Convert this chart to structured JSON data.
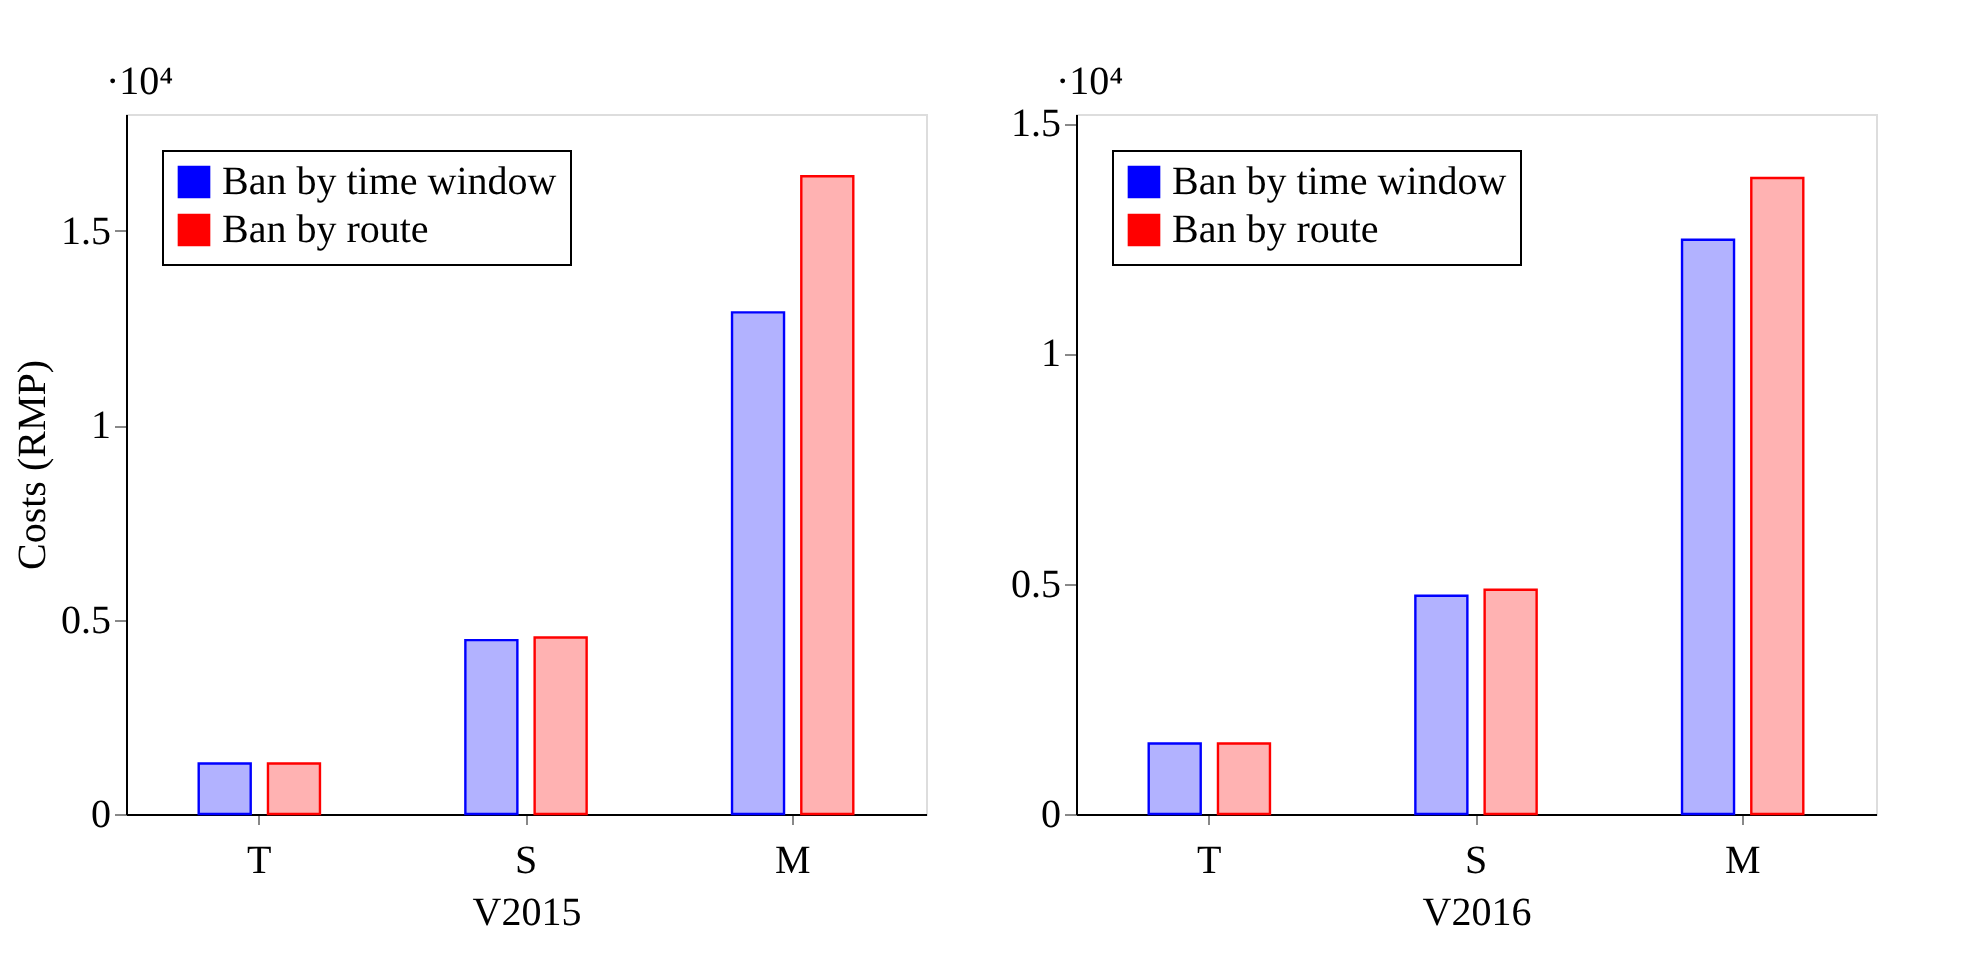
{
  "chart_data": [
    {
      "type": "bar",
      "xlabel": "V2015",
      "ylabel": "Costs (RMP)",
      "categories": [
        "T",
        "S",
        "M"
      ],
      "series": [
        {
          "name": "Ban by time window",
          "color": "#0000ff",
          "values": [
            0.13,
            0.447,
            1.29
          ]
        },
        {
          "name": "Ban by route",
          "color": "#ff0000",
          "values": [
            0.13,
            0.454,
            1.64
          ]
        }
      ],
      "ylim": [
        0,
        1.8
      ],
      "yticks": [
        0,
        0.5,
        1,
        1.5
      ],
      "annotations": [
        "·10⁴"
      ],
      "legend": "top left",
      "grid": false
    },
    {
      "type": "bar",
      "xlabel": "V2016",
      "categories": [
        "T",
        "S",
        "M"
      ],
      "series": [
        {
          "name": "Ban by time window",
          "color": "#0000ff",
          "values": [
            0.153,
            0.474,
            1.247
          ]
        },
        {
          "name": "Ban by route",
          "color": "#ff0000",
          "values": [
            0.153,
            0.487,
            1.381
          ]
        }
      ],
      "ylim": [
        0,
        1.52
      ],
      "yticks": [
        0,
        0.5,
        1,
        1.5
      ],
      "annotations": [
        "·10⁴"
      ],
      "legend": "top left",
      "grid": false
    }
  ]
}
